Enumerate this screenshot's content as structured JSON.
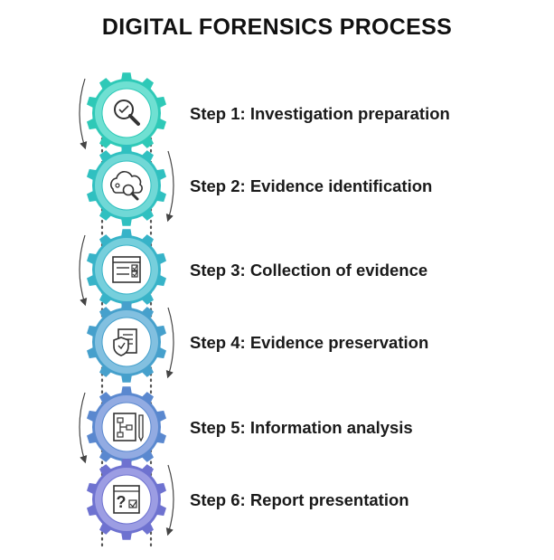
{
  "title": "DIGITAL FORENSICS PROCESS",
  "steps": [
    {
      "label": "Step 1: Investigation preparation",
      "icon": "magnifier-icon",
      "color": "#2ec9b7",
      "inner": "#6fe0d2"
    },
    {
      "label": "Step 2: Evidence identification",
      "icon": "cloud-search-icon",
      "color": "#30c0c0",
      "inner": "#70d8d6"
    },
    {
      "label": "Step 3: Collection of evidence",
      "icon": "checklist-window-icon",
      "color": "#37b3c8",
      "inner": "#76cfdc"
    },
    {
      "label": "Step 4: Evidence preservation",
      "icon": "clipboard-shield-icon",
      "color": "#46a0cc",
      "inner": "#82c0e0"
    },
    {
      "label": "Step 5: Information analysis",
      "icon": "flowchart-document-icon",
      "color": "#5a88cf",
      "inner": "#92abe2"
    },
    {
      "label": "Step 6: Report presentation",
      "icon": "question-report-icon",
      "color": "#6e72d0",
      "inner": "#9c9de3"
    }
  ]
}
